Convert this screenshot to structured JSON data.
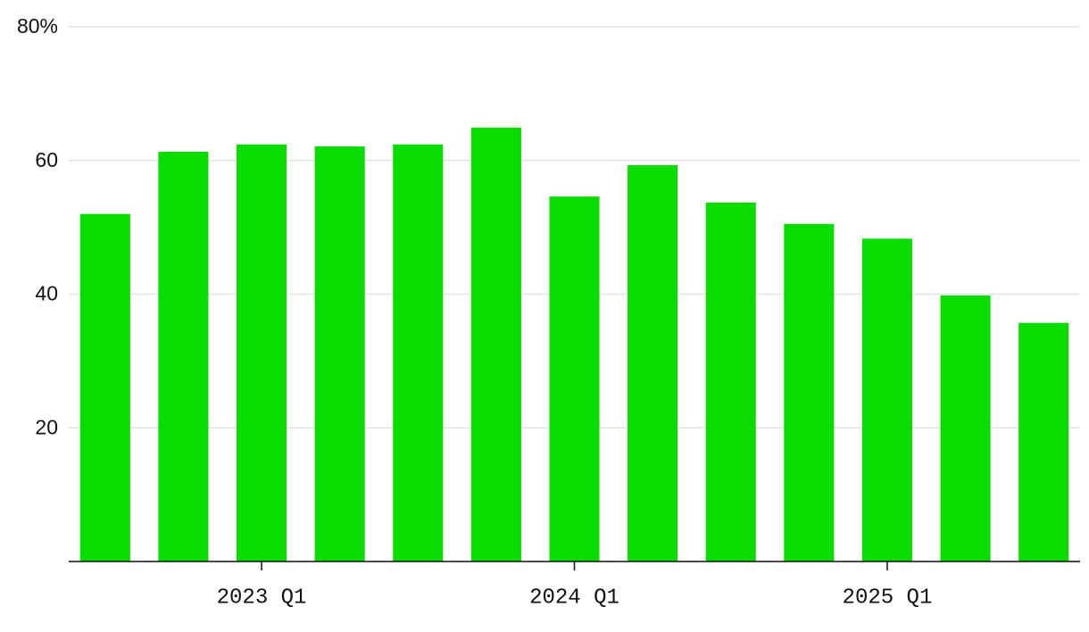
{
  "chart_data": {
    "type": "bar",
    "categories": [
      null,
      null,
      "2023 Q1",
      null,
      null,
      null,
      "2024 Q1",
      null,
      null,
      null,
      "2025 Q1",
      null,
      null
    ],
    "values": [
      52,
      61.3,
      62.4,
      62.1,
      62.4,
      64.9,
      54.6,
      59.3,
      53.7,
      50.5,
      48.3,
      39.8,
      35.7
    ],
    "color": "#0adc00",
    "ylim": [
      0,
      80
    ],
    "yticks": [
      20,
      40,
      60,
      {
        "value": 80,
        "label": "80%"
      }
    ],
    "grid": true
  }
}
